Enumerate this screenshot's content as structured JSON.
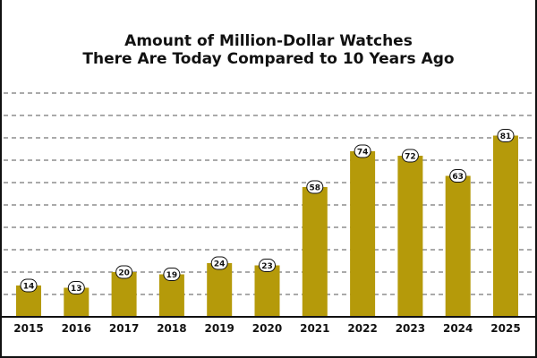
{
  "chart_data": {
    "type": "bar",
    "title_line1": "Amount of Million-Dollar Watches",
    "title_line2": "There Are Today Compared to 10 Years Ago",
    "categories": [
      "2015",
      "2016",
      "2017",
      "2018",
      "2019",
      "2020",
      "2021",
      "2022",
      "2023",
      "2024",
      "2025"
    ],
    "values": [
      14,
      13,
      20,
      19,
      24,
      23,
      58,
      74,
      72,
      63,
      81
    ],
    "ylim": [
      0,
      100
    ],
    "grid": true,
    "xlabel": "",
    "ylabel": "",
    "colors": {
      "bar": "#b59a0a",
      "grid": "#555555",
      "label_bg": "#ffffff",
      "label_border": "#111111",
      "text": "#111111"
    }
  }
}
